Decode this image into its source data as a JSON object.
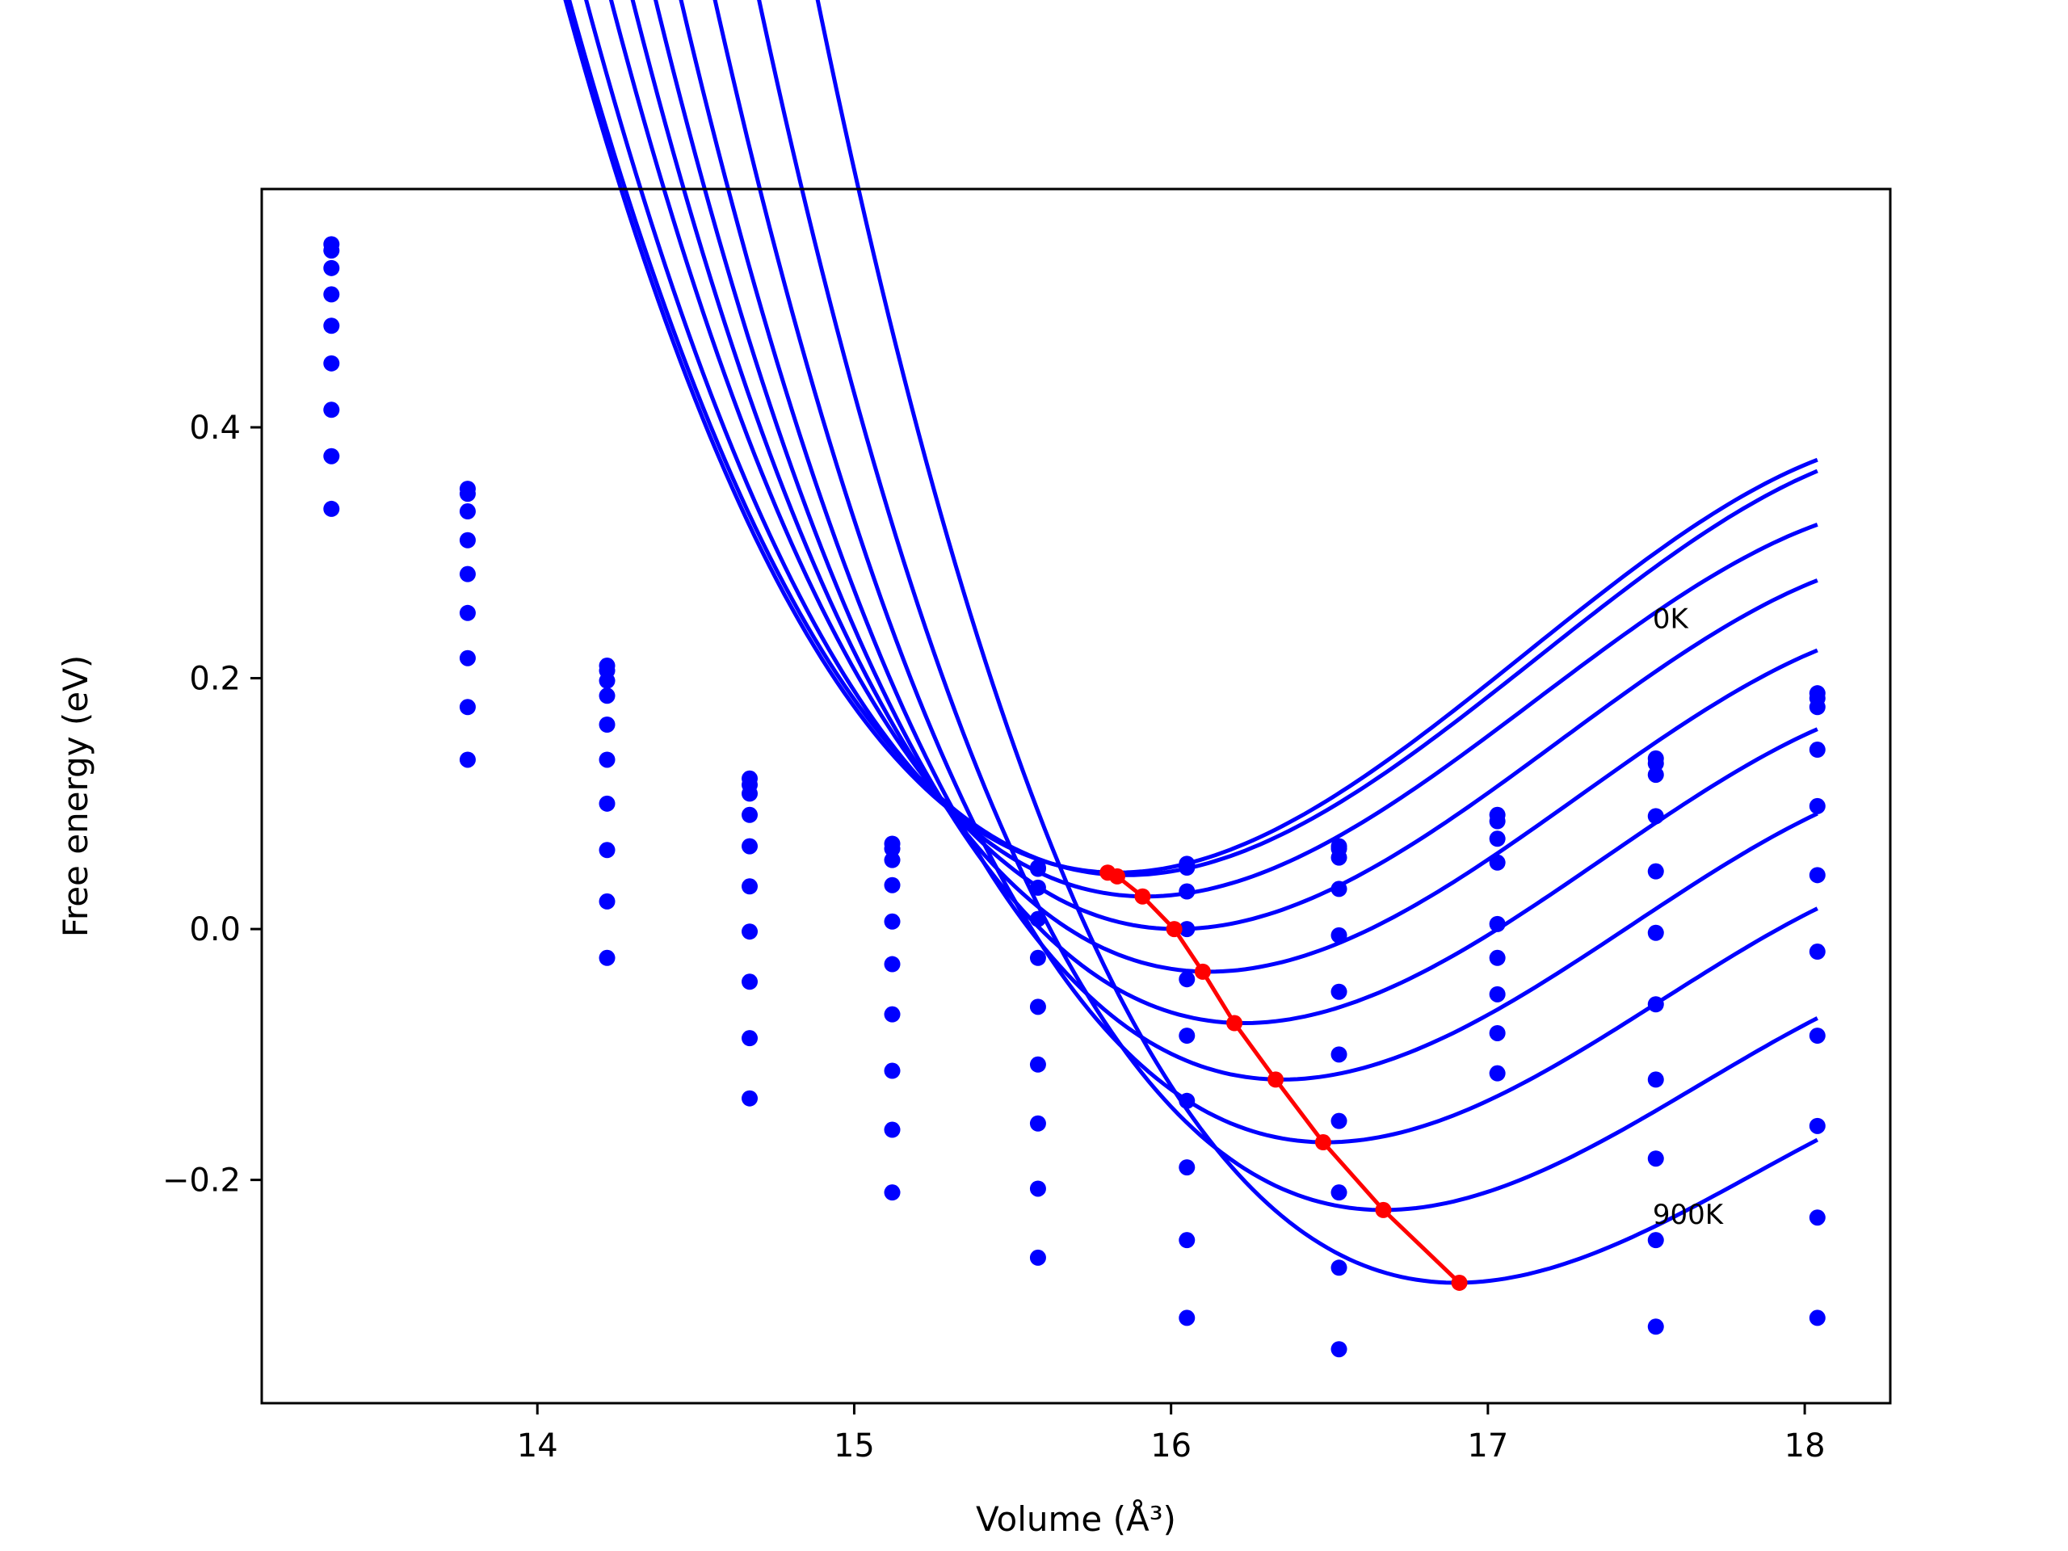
{
  "chart_data": {
    "type": "line",
    "title": "",
    "xlabel": "Volume (Å³)",
    "ylabel": "Free energy (eV)",
    "xlim": [
      13.13,
      18.27
    ],
    "ylim": [
      -0.378,
      0.59
    ],
    "x_ticks": [
      14,
      15,
      16,
      17,
      18
    ],
    "y_ticks": [
      -0.2,
      0.0,
      0.2,
      0.4
    ],
    "y_tick_labels": [
      "−0.2",
      "0.0",
      "0.2",
      "0.4"
    ],
    "annotations": [
      {
        "text": "0K",
        "x": 17.52,
        "y": 0.24
      },
      {
        "text": "900K",
        "x": 17.52,
        "y": -0.235
      }
    ],
    "colors": {
      "series": "#0000ff",
      "equilibrium": "#ff0000",
      "frame": "#000000"
    },
    "grid": false,
    "legend": "none",
    "volumes": [
      13.35,
      13.78,
      14.22,
      14.67,
      15.12,
      15.58,
      16.05,
      16.53,
      17.03,
      17.53,
      18.04
    ],
    "series": [
      {
        "points": [
          0.546,
          0.351,
          0.21,
          0.12,
          0.068,
          0.049,
          0.052,
          0.066,
          0.091,
          0.136,
          0.188
        ],
        "fit": {
          "f0": 0.045,
          "v0": 15.83,
          "a": 0.158,
          "b": -0.041
        }
      },
      {
        "points": [
          0.541,
          0.347,
          0.206,
          0.115,
          0.064,
          0.048,
          0.049,
          0.064,
          0.086,
          0.132,
          0.184
        ],
        "fit": {
          "f0": 0.043,
          "v0": 15.86,
          "a": 0.155,
          "b": -0.04
        }
      },
      {
        "points": [
          0.527,
          0.333,
          0.198,
          0.108,
          0.055,
          0.033,
          0.03,
          0.057,
          0.072,
          0.123,
          0.177
        ],
        "fit": {
          "f0": 0.026,
          "v0": 15.92,
          "a": 0.155,
          "b": -0.042
        }
      },
      {
        "points": [
          0.506,
          0.31,
          0.186,
          0.091,
          0.035,
          0.008,
          0.0,
          0.032,
          0.053,
          0.09,
          0.143
        ],
        "fit": {
          "f0": 0.0,
          "v0": 16.02,
          "a": 0.155,
          "b": -0.043
        }
      },
      {
        "points": [
          0.481,
          0.283,
          0.163,
          0.066,
          0.006,
          -0.023,
          -0.04,
          -0.005,
          0.004,
          0.046,
          0.098
        ],
        "fit": {
          "f0": -0.034,
          "v0": 16.12,
          "a": 0.154,
          "b": -0.044
        }
      },
      {
        "points": [
          0.451,
          0.252,
          0.135,
          0.034,
          -0.028,
          -0.062,
          -0.085,
          -0.05,
          -0.023,
          -0.003,
          0.043
        ],
        "fit": {
          "f0": -0.075,
          "v0": 16.23,
          "a": 0.153,
          "b": -0.045
        }
      },
      {
        "points": [
          0.414,
          0.216,
          0.1,
          -0.002,
          -0.068,
          -0.108,
          -0.137,
          -0.1,
          -0.052,
          -0.06,
          -0.018
        ],
        "fit": {
          "f0": -0.12,
          "v0": 16.35,
          "a": 0.152,
          "b": -0.046
        }
      },
      {
        "points": [
          0.377,
          0.177,
          0.063,
          -0.042,
          -0.113,
          -0.155,
          -0.19,
          -0.153,
          -0.083,
          -0.12,
          -0.085
        ],
        "fit": {
          "f0": -0.17,
          "v0": 16.49,
          "a": 0.152,
          "b": -0.048
        }
      },
      {
        "points": [
          0.335,
          0.135,
          0.022,
          -0.087,
          -0.16,
          -0.207,
          -0.248,
          -0.21,
          -0.115,
          -0.183,
          -0.157
        ],
        "fit": {
          "f0": -0.224,
          "v0": 16.67,
          "a": 0.15,
          "b": -0.05
        }
      },
      {
        "points": [
          null,
          null,
          -0.023,
          -0.135,
          -0.21,
          -0.262,
          -0.31,
          -0.27,
          null,
          -0.248,
          -0.23
        ],
        "fit": {
          "f0": -0.282,
          "v0": 16.9,
          "a": 0.147,
          "b": -0.052
        }
      },
      {
        "points": [
          null,
          null,
          null,
          null,
          null,
          null,
          null,
          -0.335,
          null,
          -0.317,
          -0.31
        ],
        "fit": null
      }
    ],
    "equilibrium": {
      "x": [
        15.8,
        15.83,
        15.91,
        16.01,
        16.1,
        16.2,
        16.33,
        16.48,
        16.67,
        16.91
      ],
      "y": [
        0.045,
        0.042,
        0.026,
        0.0,
        -0.034,
        -0.075,
        -0.12,
        -0.17,
        -0.224,
        -0.282
      ]
    }
  }
}
